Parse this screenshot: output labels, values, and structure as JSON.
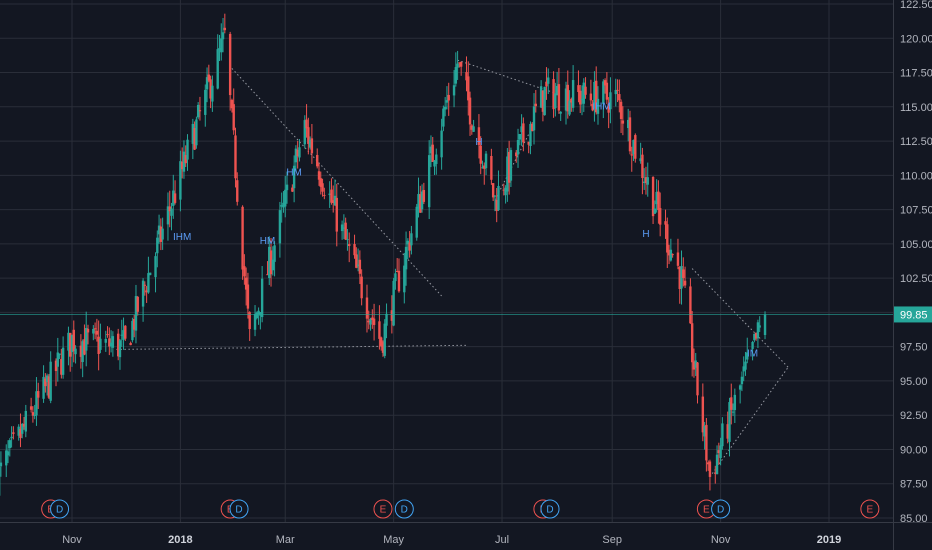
{
  "chart_data": {
    "type": "candlestick",
    "x_tick_labels": [
      "Nov",
      "2018",
      "Mar",
      "May",
      "Jul",
      "Sep",
      "Nov",
      "2019"
    ],
    "y_tick_labels": [
      "122.50",
      "120.00",
      "117.50",
      "115.00",
      "112.50",
      "110.00",
      "107.50",
      "105.00",
      "102.50",
      "100.00",
      "97.50",
      "95.00",
      "92.50",
      "90.00",
      "87.50",
      "85.00"
    ],
    "ylim": [
      85,
      122.5
    ],
    "last_price": "99.85",
    "grid": true,
    "colors": {
      "background": "#131722",
      "up": "#26a69a",
      "down": "#ef5350",
      "grid": "#2a2e39",
      "price_tag": "#26a69a",
      "event_e": "#ef5350",
      "event_d": "#42a5f5",
      "pattern": "#5b9cf6",
      "trendline": "#9598a1"
    },
    "key_prices": [
      {
        "date": "2017-09-20",
        "close": 87.9
      },
      {
        "date": "2017-11-01",
        "close": 98.0
      },
      {
        "date": "2017-12-01",
        "close": 97.5
      },
      {
        "date": "2018-01-26",
        "close": 120.0
      },
      {
        "date": "2018-02-09",
        "close": 98.0
      },
      {
        "date": "2018-03-12",
        "close": 113.5
      },
      {
        "date": "2018-04-24",
        "close": 97.8
      },
      {
        "date": "2018-06-06",
        "close": 118.2
      },
      {
        "date": "2018-06-27",
        "close": 108.2
      },
      {
        "date": "2018-07-25",
        "close": 116.0
      },
      {
        "date": "2018-09-04",
        "close": 115.6
      },
      {
        "date": "2018-10-10",
        "close": 102.5
      },
      {
        "date": "2018-10-26",
        "close": 88.0
      },
      {
        "date": "2018-11-26",
        "close": 99.85
      }
    ],
    "pattern_labels": [
      {
        "text": "IHM",
        "date": "2018-01-02",
        "price": 105.3
      },
      {
        "text": "HM",
        "date": "2018-02-19",
        "price": 105.0
      },
      {
        "text": "HM",
        "date": "2018-03-06",
        "price": 110.0
      },
      {
        "text": "H",
        "date": "2018-06-18",
        "price": 112.2
      },
      {
        "text": "IHM",
        "date": "2018-08-26",
        "price": 114.8
      },
      {
        "text": "H",
        "date": "2018-09-20",
        "price": 105.5
      },
      {
        "text": "IM",
        "date": "2018-11-19",
        "price": 96.8
      }
    ],
    "events": [
      {
        "label": "E",
        "date": "2017-10-20"
      },
      {
        "label": "D",
        "date": "2017-10-25"
      },
      {
        "label": "E",
        "date": "2018-01-29"
      },
      {
        "label": "D",
        "date": "2018-02-03"
      },
      {
        "label": "E",
        "date": "2018-04-25"
      },
      {
        "label": "D",
        "date": "2018-05-07"
      },
      {
        "label": "E",
        "date": "2018-07-24"
      },
      {
        "label": "D",
        "date": "2018-07-28"
      },
      {
        "label": "E",
        "date": "2018-10-24"
      },
      {
        "label": "D",
        "date": "2018-11-01"
      },
      {
        "label": "E",
        "date": "2019-01-24"
      }
    ],
    "trendlines": [
      {
        "from": {
          "date": "2018-01-30",
          "price": 117.8
        },
        "to": {
          "date": "2018-05-28",
          "price": 101.2
        }
      },
      {
        "from": {
          "date": "2017-11-26",
          "price": 97.3
        },
        "to": {
          "date": "2018-06-12",
          "price": 97.6
        }
      },
      {
        "from": {
          "date": "2018-06-06",
          "price": 118.4
        },
        "to": {
          "date": "2018-07-31",
          "price": 116.0
        }
      },
      {
        "from": {
          "date": "2018-06-27",
          "price": 108.2
        },
        "to": {
          "date": "2018-07-18",
          "price": 113.5
        }
      },
      {
        "from": {
          "date": "2018-10-16",
          "price": 103.2
        },
        "to": {
          "date": "2018-12-09",
          "price": 96.0
        }
      },
      {
        "from": {
          "date": "2018-10-26",
          "price": 88.0
        },
        "to": {
          "date": "2018-12-09",
          "price": 96.0
        }
      }
    ]
  }
}
